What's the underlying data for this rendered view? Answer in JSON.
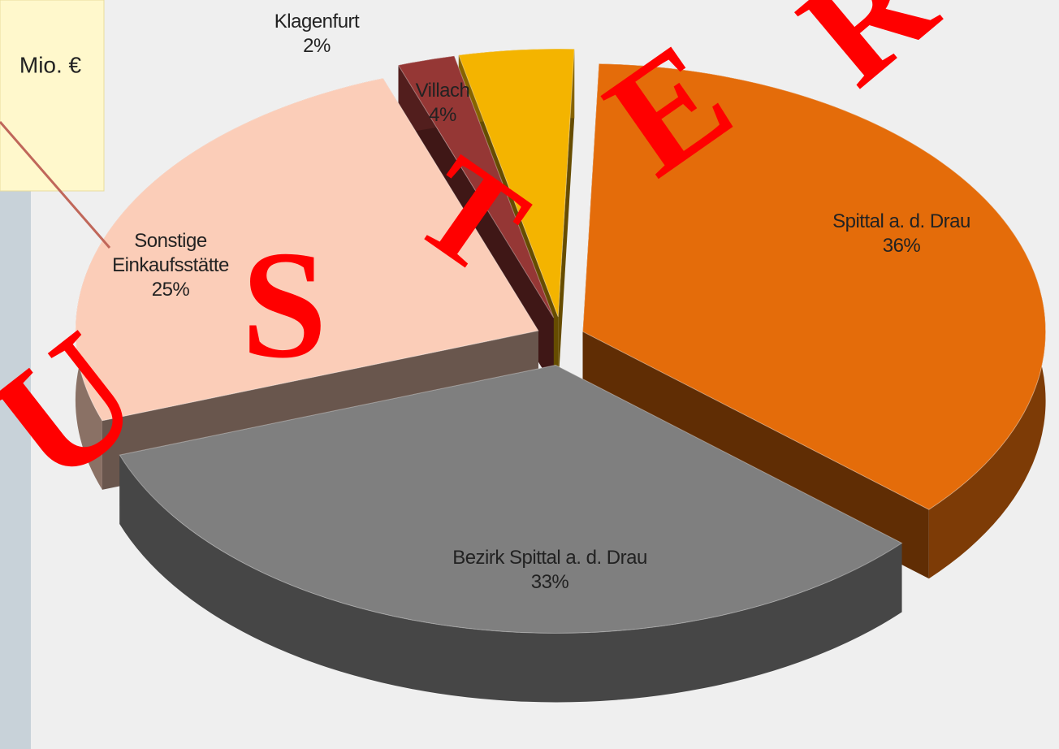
{
  "chart_data": {
    "type": "pie",
    "categories": [
      "Spittal a. d. Drau",
      "Bezirk Spittal a. d. Drau",
      "Sonstige Einkaufsstätte",
      "Klagenfurt",
      "Villach"
    ],
    "values": [
      36,
      33,
      25,
      2,
      4
    ],
    "value_labels": [
      "36%",
      "33%",
      "25%",
      "2%",
      "4%"
    ],
    "colors": [
      "#e46c0a",
      "#7f7f7f",
      "#fbcdb8",
      "#953735",
      "#f4b400"
    ],
    "callout": "Mio. €",
    "annotations": [
      "U",
      "S",
      "T",
      "E",
      "R"
    ]
  }
}
